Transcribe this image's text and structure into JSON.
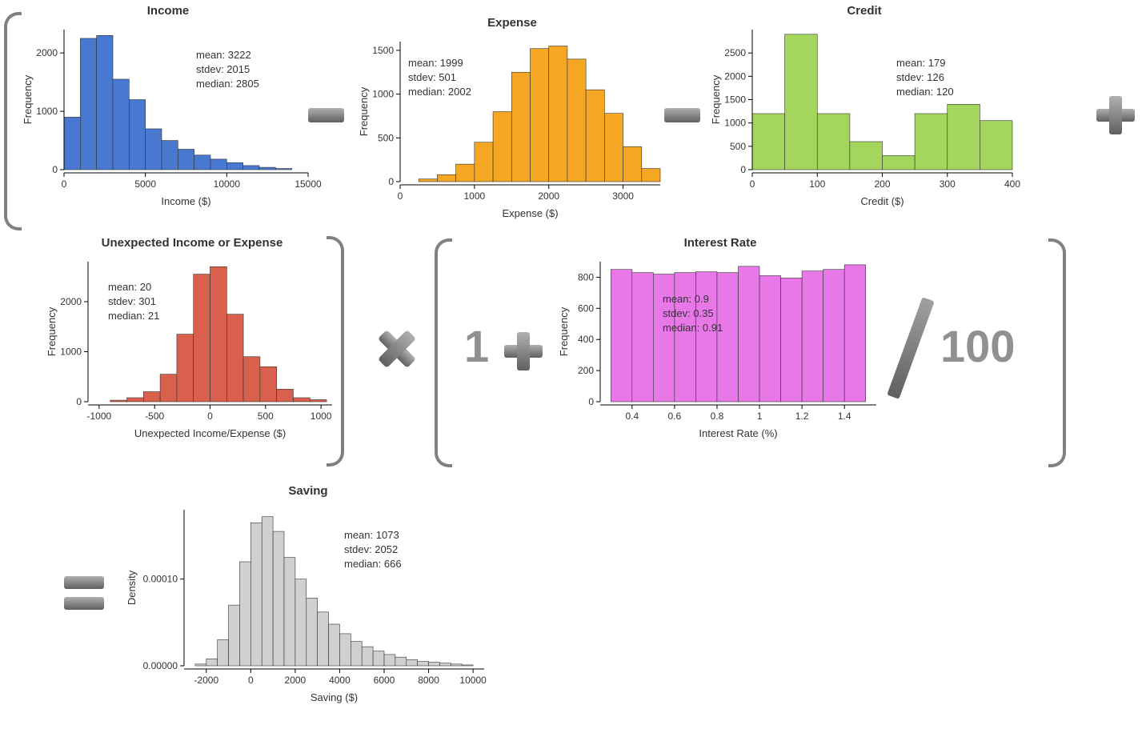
{
  "charts": {
    "income": {
      "title": "Income",
      "type": "histogram",
      "xlabel": "Income ($)",
      "ylabel": "Frequency",
      "stats": {
        "mean": "3222",
        "stdev": "2015",
        "median": "2805"
      },
      "xlim": [
        0,
        15000
      ],
      "xticks": [
        0,
        5000,
        10000,
        15000
      ],
      "ylim": [
        0,
        2400
      ],
      "yticks": [
        0,
        1000,
        2000
      ],
      "bar_color": "#4878d0",
      "border_color": "#333",
      "bin_edges": [
        0,
        1000,
        2000,
        3000,
        4000,
        5000,
        6000,
        7000,
        8000,
        9000,
        10000,
        11000,
        12000,
        13000,
        14000
      ],
      "values": [
        900,
        2250,
        2300,
        1550,
        1200,
        700,
        500,
        350,
        250,
        180,
        120,
        70,
        40,
        20
      ]
    },
    "expense": {
      "title": "Expense",
      "type": "histogram",
      "xlabel": "Expense ($)",
      "ylabel": "Frequency",
      "stats": {
        "mean": "1999",
        "stdev": "501",
        "median": "2002"
      },
      "xlim": [
        0,
        3500
      ],
      "xticks": [
        0,
        1000,
        2000,
        3000
      ],
      "ylim": [
        0,
        1600
      ],
      "yticks": [
        0,
        500,
        1000,
        1500
      ],
      "bar_color": "#f5a623",
      "border_color": "#333",
      "bin_edges": [
        250,
        500,
        750,
        1000,
        1250,
        1500,
        1750,
        2000,
        2250,
        2500,
        2750,
        3000,
        3250,
        3500
      ],
      "values": [
        30,
        80,
        200,
        450,
        800,
        1250,
        1520,
        1550,
        1400,
        1050,
        780,
        400,
        150
      ]
    },
    "credit": {
      "title": "Credit",
      "type": "histogram",
      "xlabel": "Credit ($)",
      "ylabel": "Frequency",
      "stats": {
        "mean": "179",
        "stdev": "126",
        "median": "120"
      },
      "xlim": [
        0,
        400
      ],
      "xticks": [
        0,
        100,
        200,
        300,
        400
      ],
      "ylim": [
        0,
        3000
      ],
      "yticks": [
        0,
        500,
        1000,
        1500,
        2000,
        2500
      ],
      "bar_color": "#a4d65e",
      "border_color": "#333",
      "bin_edges": [
        0,
        50,
        100,
        150,
        200,
        250,
        300,
        350,
        400
      ],
      "values": [
        1200,
        2900,
        1200,
        600,
        300,
        1200,
        1400,
        1050
      ]
    },
    "unexpected": {
      "title": "Unexpected Income or Expense",
      "type": "histogram",
      "xlabel": "Unexpected Income/Expense ($)",
      "ylabel": "Frequency",
      "stats": {
        "mean": "20",
        "stdev": "301",
        "median": "21"
      },
      "xlim": [
        -1100,
        1100
      ],
      "xticks": [
        -1000,
        -500,
        0,
        500,
        1000
      ],
      "ylim": [
        0,
        2800
      ],
      "yticks": [
        0,
        1000,
        2000
      ],
      "bar_color": "#d9604c",
      "border_color": "#333",
      "bin_edges": [
        -900,
        -750,
        -600,
        -450,
        -300,
        -150,
        0,
        150,
        300,
        450,
        600,
        750,
        900,
        1050
      ],
      "values": [
        30,
        80,
        200,
        550,
        1350,
        2550,
        2700,
        1750,
        900,
        700,
        250,
        80,
        40
      ]
    },
    "interest": {
      "title": "Interest Rate",
      "type": "histogram",
      "xlabel": "Interest Rate (%)",
      "ylabel": "Frequency",
      "stats": {
        "mean": "0.9",
        "stdev": "0.35",
        "median": "0.91"
      },
      "xlim": [
        0.25,
        1.55
      ],
      "xticks": [
        0.4,
        0.6,
        0.8,
        1.0,
        1.2,
        1.4
      ],
      "ylim": [
        0,
        900
      ],
      "yticks": [
        0,
        200,
        400,
        600,
        800
      ],
      "bar_color": "#e878e8",
      "border_color": "#333",
      "bin_edges": [
        0.3,
        0.4,
        0.5,
        0.6,
        0.7,
        0.8,
        0.9,
        1.0,
        1.1,
        1.2,
        1.3,
        1.4,
        1.5
      ],
      "values": [
        850,
        830,
        820,
        830,
        835,
        830,
        870,
        810,
        795,
        840,
        850,
        880
      ]
    },
    "saving": {
      "title": "Saving",
      "type": "histogram",
      "xlabel": "Saving ($)",
      "ylabel": "Density",
      "stats": {
        "mean": "1073",
        "stdev": "2052",
        "median": "666"
      },
      "xlim": [
        -3000,
        10500
      ],
      "xticks": [
        -2000,
        0,
        2000,
        4000,
        6000,
        8000,
        10000
      ],
      "ylim": [
        0,
        0.00018
      ],
      "yticks_labels": [
        "0.00000",
        "0.00010"
      ],
      "yticks_vals": [
        0,
        0.0001
      ],
      "bar_color": "#d0d0d0",
      "border_color": "#333",
      "bin_edges": [
        -2500,
        -2000,
        -1500,
        -1000,
        -500,
        0,
        500,
        1000,
        1500,
        2000,
        2500,
        3000,
        3500,
        4000,
        4500,
        5000,
        5500,
        6000,
        6500,
        7000,
        7500,
        8000,
        8500,
        9000,
        9500,
        10000
      ],
      "values": [
        2e-06,
        8e-06,
        3e-05,
        7e-05,
        0.00012,
        0.000165,
        0.000172,
        0.000155,
        0.000125,
        0.0001,
        7.8e-05,
        6.2e-05,
        4.8e-05,
        3.7e-05,
        2.8e-05,
        2.2e-05,
        1.7e-05,
        1.3e-05,
        1e-05,
        7e-06,
        5e-06,
        4e-06,
        3e-06,
        2e-06,
        1e-06
      ]
    }
  },
  "operators": {
    "one": "1",
    "hundred": "100"
  }
}
